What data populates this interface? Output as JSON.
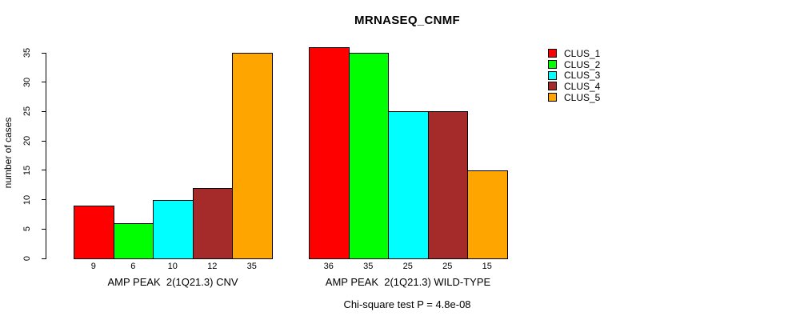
{
  "chart_data": {
    "type": "bar",
    "title": "MRNASEQ_CNMF",
    "ylabel": "number of cases",
    "yticks": [
      0,
      5,
      10,
      15,
      20,
      25,
      30,
      35
    ],
    "ylim": [
      0,
      36
    ],
    "grid": false,
    "legend_position": "right",
    "clusters": [
      {
        "name": "CLUS_1",
        "color": "#ff0000"
      },
      {
        "name": "CLUS_2",
        "color": "#00ff00"
      },
      {
        "name": "CLUS_3",
        "color": "#00ffff"
      },
      {
        "name": "CLUS_4",
        "color": "#a52a2a"
      },
      {
        "name": "CLUS_5",
        "color": "#ffa500"
      }
    ],
    "groups": [
      {
        "label": "AMP PEAK  2(1Q21.3) CNV",
        "values": [
          9,
          6,
          10,
          12,
          35
        ]
      },
      {
        "label": "AMP PEAK  2(1Q21.3) WILD-TYPE",
        "values": [
          36,
          35,
          25,
          25,
          15
        ]
      }
    ],
    "bar_value_labels_shown": true,
    "note": "Chi-square test P = 4.8e-08"
  }
}
